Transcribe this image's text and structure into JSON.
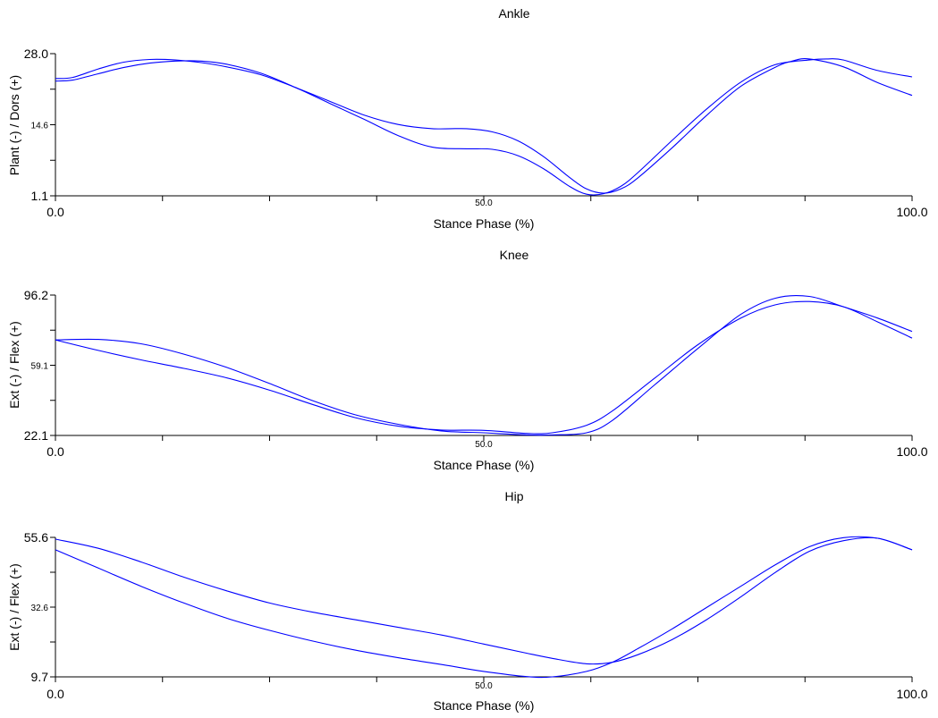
{
  "chart_data": [
    {
      "type": "line",
      "title": "Ankle",
      "xlabel": "Stance Phase (%)",
      "ylabel": "Plant (-) / Dors (+)",
      "x_tick_labels": [
        "0.0",
        "50.0",
        "100.0"
      ],
      "y_tick_labels": [
        "28.0",
        "14.6",
        "1.1"
      ],
      "xlim": [
        0,
        100
      ],
      "ylim": [
        1.1,
        28.0
      ],
      "line_color": "#0000ff",
      "series": [
        {
          "x": [
            0,
            2,
            5,
            8,
            11,
            14,
            17,
            20,
            24,
            28,
            32,
            36,
            40,
            44,
            48,
            51,
            54,
            57,
            60,
            62,
            64,
            66,
            68,
            72,
            76,
            80,
            84,
            86,
            88,
            92,
            96,
            100
          ],
          "y": [
            23.3,
            23.5,
            25.1,
            26.4,
            26.9,
            26.8,
            26.3,
            25.5,
            24.0,
            21.6,
            19.0,
            16.4,
            14.6,
            13.8,
            13.8,
            13.2,
            11.5,
            8.5,
            4.6,
            2.4,
            1.6,
            2.4,
            4.5,
            10.2,
            16.3,
            21.8,
            25.4,
            26.6,
            27.0,
            25.5,
            22.5,
            20.1
          ]
        },
        {
          "x": [
            0,
            2,
            5,
            8,
            11,
            14,
            17,
            20,
            24,
            28,
            32,
            36,
            40,
            44,
            48,
            51,
            54,
            57,
            60,
            62,
            64,
            66,
            68,
            72,
            76,
            80,
            84,
            88,
            90,
            92,
            96,
            100
          ],
          "y": [
            22.8,
            23.0,
            24.2,
            25.4,
            26.2,
            26.6,
            26.6,
            26.0,
            24.3,
            21.6,
            18.6,
            15.6,
            12.5,
            10.3,
            10.0,
            9.9,
            8.7,
            6.2,
            2.9,
            1.4,
            1.5,
            2.9,
            5.5,
            11.6,
            17.5,
            22.6,
            25.9,
            26.8,
            27.0,
            26.8,
            24.8,
            23.6
          ]
        }
      ]
    },
    {
      "type": "line",
      "title": "Knee",
      "xlabel": "Stance Phase (%)",
      "ylabel": "Ext (-) / Flex (+)",
      "x_tick_labels": [
        "0.0",
        "50.0",
        "100.0"
      ],
      "y_tick_labels": [
        "96.2",
        "59.1",
        "22.1"
      ],
      "xlim": [
        0,
        100
      ],
      "ylim": [
        22.1,
        96.2
      ],
      "line_color": "#0000ff",
      "series": [
        {
          "x": [
            0,
            5,
            10,
            15,
            20,
            25,
            30,
            35,
            40,
            45,
            50,
            55,
            58,
            62,
            65,
            70,
            75,
            80,
            84,
            88,
            92,
            96,
            100
          ],
          "y": [
            72.5,
            67.0,
            62.0,
            57.5,
            52.5,
            46.0,
            38.5,
            31.5,
            27.0,
            25.0,
            24.8,
            23.2,
            23.5,
            27.5,
            35.0,
            52.5,
            70.0,
            84.0,
            91.0,
            92.8,
            90.0,
            82.0,
            73.5
          ]
        },
        {
          "x": [
            0,
            5,
            10,
            15,
            20,
            25,
            30,
            35,
            40,
            45,
            50,
            55,
            58,
            62,
            65,
            70,
            75,
            80,
            84,
            88,
            92,
            96,
            100
          ],
          "y": [
            72.5,
            72.8,
            70.5,
            65.0,
            58.0,
            49.5,
            40.5,
            33.0,
            28.0,
            24.5,
            23.5,
            22.4,
            22.4,
            23.5,
            30.0,
            49.0,
            68.0,
            86.0,
            94.5,
            95.5,
            90.0,
            84.0,
            77.0
          ]
        }
      ]
    },
    {
      "type": "line",
      "title": "Hip",
      "xlabel": "Stance Phase (%)",
      "ylabel": "Ext (-) / Flex (+)",
      "x_tick_labels": [
        "0.0",
        "50.0",
        "100.0"
      ],
      "y_tick_labels": [
        "55.6",
        "32.6",
        "9.7"
      ],
      "xlim": [
        0,
        100
      ],
      "ylim": [
        9.7,
        55.6
      ],
      "line_color": "#0000ff",
      "series": [
        {
          "x": [
            0,
            5,
            10,
            15,
            20,
            25,
            30,
            35,
            40,
            45,
            50,
            55,
            58,
            62,
            65,
            68,
            72,
            76,
            80,
            84,
            88,
            92,
            96,
            100
          ],
          "y": [
            55.0,
            52.0,
            47.5,
            42.5,
            38.0,
            34.0,
            31.0,
            28.5,
            26.0,
            23.5,
            20.5,
            17.5,
            15.8,
            14.0,
            14.5,
            17.0,
            22.0,
            28.5,
            36.0,
            44.0,
            51.0,
            54.5,
            55.3,
            51.5
          ]
        },
        {
          "x": [
            0,
            5,
            10,
            15,
            20,
            25,
            30,
            35,
            40,
            45,
            50,
            55,
            58,
            62,
            65,
            68,
            72,
            76,
            80,
            84,
            88,
            92,
            96,
            100
          ],
          "y": [
            51.5,
            45.5,
            39.5,
            34.0,
            29.0,
            25.0,
            21.5,
            18.5,
            16.0,
            13.8,
            11.5,
            9.8,
            9.7,
            11.5,
            14.5,
            19.0,
            25.5,
            32.5,
            39.5,
            46.5,
            52.5,
            55.5,
            55.3,
            51.5
          ]
        }
      ]
    }
  ]
}
